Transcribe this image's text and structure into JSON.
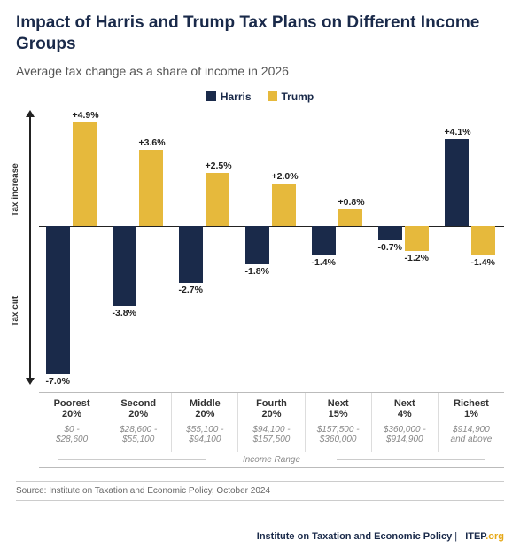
{
  "title": "Impact of Harris and Trump Tax Plans on Different Income Groups",
  "subtitle": "Average tax change as a share of income in 2026",
  "legend": {
    "harris": "Harris",
    "trump": "Trump"
  },
  "chart": {
    "type": "bar",
    "orientation": "vertical-diverging",
    "baseline": 0,
    "ylim": [
      -7.5,
      5.5
    ],
    "y_axis_labels": {
      "increase": "Tax increase",
      "cut": "Tax cut"
    },
    "series_colors": {
      "harris": "#1a2a4a",
      "trump": "#e6b93c"
    },
    "background_color": "#ffffff",
    "label_fontsize": 10.5,
    "categories": [
      {
        "label_l1": "Poorest",
        "label_l2": "20%",
        "range_l1": "$0 -",
        "range_l2": "$28,600",
        "harris": -7.0,
        "trump": 4.9
      },
      {
        "label_l1": "Second",
        "label_l2": "20%",
        "range_l1": "$28,600 -",
        "range_l2": "$55,100",
        "harris": -3.8,
        "trump": 3.6
      },
      {
        "label_l1": "Middle",
        "label_l2": "20%",
        "range_l1": "$55,100 -",
        "range_l2": "$94,100",
        "harris": -2.7,
        "trump": 2.5
      },
      {
        "label_l1": "Fourth",
        "label_l2": "20%",
        "range_l1": "$94,100 -",
        "range_l2": "$157,500",
        "harris": -1.8,
        "trump": 2.0
      },
      {
        "label_l1": "Next",
        "label_l2": "15%",
        "range_l1": "$157,500 -",
        "range_l2": "$360,000",
        "harris": -1.4,
        "trump": 0.8
      },
      {
        "label_l1": "Next",
        "label_l2": "4%",
        "range_l1": "$360,000 -",
        "range_l2": "$914,900",
        "harris": -0.7,
        "trump": -1.2
      },
      {
        "label_l1": "Richest",
        "label_l2": "1%",
        "range_l1": "$914,900",
        "range_l2": "and above",
        "harris": 4.1,
        "trump": -1.4
      }
    ],
    "x_axis_label": "Income Range"
  },
  "source": "Source: Institute on Taxation and Economic Policy, October 2024",
  "footer": {
    "org": "Institute on Taxation and Economic Policy",
    "brand": "ITEP",
    "suffix": ".org"
  }
}
